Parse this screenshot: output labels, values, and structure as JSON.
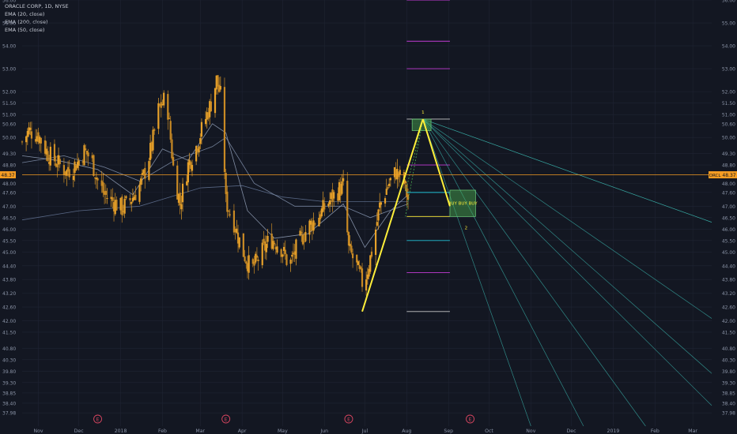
{
  "legend": {
    "title": "ORACLE CORP, 1D, NYSE",
    "indicators": [
      "EMA (20, close)",
      "EMA (200, close)",
      "EMA (50, close)"
    ]
  },
  "colors": {
    "background": "#131722",
    "grid": "#1f2433",
    "bull": "#e7a12a",
    "bear": "#c98a24",
    "ema20": "#8e9bb3",
    "ema50": "#7f8ea8",
    "ema200": "#5f6f8e",
    "price_line": "#f59d23",
    "trend": "#ffef3a",
    "fib_magenta": "#c23bd4",
    "fib_cyan": "#22c1d6",
    "fib_white": "#c8c8c8",
    "fan": "#3bb8b0",
    "zone": "#4caf50",
    "earnings": "#d84560",
    "axis_text": "#8a93a6"
  },
  "last_price": {
    "value": "48.37",
    "symbol": "ORCL"
  },
  "annotations": {
    "buy_text": "BUY BUY BUY",
    "point1": "1",
    "point2": "2"
  },
  "earnings_marker": "E",
  "chart_data": {
    "type": "candlestick",
    "y_axis": {
      "min": 37.4,
      "max": 56.0,
      "tick_labels": [
        "37.98",
        "38.40",
        "38.85",
        "39.30",
        "39.80",
        "40.30",
        "40.80",
        "41.50",
        "42.00",
        "42.60",
        "43.20",
        "43.80",
        "44.40",
        "45.00",
        "45.50",
        "46.00",
        "46.50",
        "47.00",
        "47.60",
        "48.00",
        "48.80",
        "49.30",
        "50.00",
        "50.60",
        "51.00",
        "51.50",
        "52.00",
        "53.00",
        "54.00",
        "55.00",
        "56.00"
      ],
      "tick_values": [
        37.98,
        38.4,
        38.85,
        39.3,
        39.8,
        40.3,
        40.8,
        41.5,
        42.0,
        42.6,
        43.2,
        43.8,
        44.4,
        45.0,
        45.5,
        46.0,
        46.5,
        47.0,
        47.6,
        48.0,
        48.8,
        49.3,
        50.0,
        50.6,
        51.0,
        51.5,
        52.0,
        53.0,
        54.0,
        55.0,
        56.0
      ]
    },
    "x_axis": {
      "tick_labels": [
        "Nov",
        "Dec",
        "2018",
        "Feb",
        "Mar",
        "Apr",
        "May",
        "Jun",
        "Jul",
        "Aug",
        "Sep",
        "Oct",
        "Nov",
        "Dec",
        "2019",
        "Feb",
        "Mar"
      ],
      "tick_dates": [
        "2017-11-01",
        "2017-12-01",
        "2018-01-01",
        "2018-02-01",
        "2018-03-01",
        "2018-04-01",
        "2018-05-01",
        "2018-06-01",
        "2018-07-01",
        "2018-08-01",
        "2018-09-01",
        "2018-10-01",
        "2018-11-01",
        "2018-12-01",
        "2019-01-01",
        "2019-02-01",
        "2019-03-01"
      ],
      "start": "2017-10-20",
      "end": "2019-03-15"
    },
    "price_path": [
      [
        "2017-10-20",
        49.8
      ],
      [
        "2017-10-25",
        50.3
      ],
      [
        "2017-11-01",
        50.1
      ],
      [
        "2017-11-08",
        49.3
      ],
      [
        "2017-11-15",
        48.9
      ],
      [
        "2017-11-22",
        48.5
      ],
      [
        "2017-11-30",
        48.9
      ],
      [
        "2017-12-05",
        49.4
      ],
      [
        "2017-12-10",
        49.1
      ],
      [
        "2017-12-15",
        48.1
      ],
      [
        "2017-12-20",
        47.5
      ],
      [
        "2018-01-02",
        46.9
      ],
      [
        "2018-01-10",
        47.4
      ],
      [
        "2018-01-17",
        48.1
      ],
      [
        "2018-01-24",
        49.6
      ],
      [
        "2018-01-29",
        51.2
      ],
      [
        "2018-02-04",
        51.8
      ],
      [
        "2018-02-09",
        48.7
      ],
      [
        "2018-02-14",
        47.1
      ],
      [
        "2018-02-20",
        48.8
      ],
      [
        "2018-02-26",
        49.6
      ],
      [
        "2018-03-03",
        50.5
      ],
      [
        "2018-03-09",
        51.5
      ],
      [
        "2018-03-13",
        52.5
      ],
      [
        "2018-03-17",
        51.6
      ],
      [
        "2018-03-20",
        47.2
      ],
      [
        "2018-03-26",
        46.3
      ],
      [
        "2018-04-01",
        45.1
      ],
      [
        "2018-04-08",
        44.2
      ],
      [
        "2018-04-15",
        44.9
      ],
      [
        "2018-04-22",
        45.6
      ],
      [
        "2018-04-29",
        45.3
      ],
      [
        "2018-05-06",
        44.4
      ],
      [
        "2018-05-13",
        45.4
      ],
      [
        "2018-05-20",
        46.1
      ],
      [
        "2018-05-27",
        46.5
      ],
      [
        "2018-06-03",
        47.1
      ],
      [
        "2018-06-10",
        47.6
      ],
      [
        "2018-06-15",
        47.9
      ],
      [
        "2018-06-19",
        45.1
      ],
      [
        "2018-06-24",
        44.5
      ],
      [
        "2018-06-30",
        43.5
      ],
      [
        "2018-07-06",
        45.0
      ],
      [
        "2018-07-12",
        47.0
      ],
      [
        "2018-07-18",
        47.9
      ],
      [
        "2018-07-24",
        48.5
      ],
      [
        "2018-07-30",
        48.0
      ],
      [
        "2018-08-02",
        47.3
      ]
    ],
    "ema_20": [
      [
        "2017-10-20",
        49.2
      ],
      [
        "2017-11-15",
        49.0
      ],
      [
        "2017-12-15",
        48.6
      ],
      [
        "2018-01-10",
        47.5
      ],
      [
        "2018-02-01",
        49.5
      ],
      [
        "2018-02-20",
        49.0
      ],
      [
        "2018-03-10",
        50.6
      ],
      [
        "2018-03-20",
        50.2
      ],
      [
        "2018-04-05",
        46.8
      ],
      [
        "2018-04-25",
        45.6
      ],
      [
        "2018-05-20",
        45.8
      ],
      [
        "2018-06-15",
        47.1
      ],
      [
        "2018-07-01",
        45.2
      ],
      [
        "2018-07-20",
        46.8
      ],
      [
        "2018-08-02",
        47.5
      ]
    ],
    "ema_50": [
      [
        "2017-10-20",
        48.9
      ],
      [
        "2017-11-20",
        49.2
      ],
      [
        "2017-12-20",
        48.7
      ],
      [
        "2018-01-15",
        48.1
      ],
      [
        "2018-02-10",
        49.0
      ],
      [
        "2018-03-10",
        49.6
      ],
      [
        "2018-03-20",
        50.0
      ],
      [
        "2018-04-10",
        48.0
      ],
      [
        "2018-05-10",
        47.0
      ],
      [
        "2018-06-15",
        47.0
      ],
      [
        "2018-07-05",
        46.5
      ],
      [
        "2018-08-02",
        47.1
      ]
    ],
    "ema_200": [
      [
        "2017-10-20",
        46.4
      ],
      [
        "2017-12-01",
        46.8
      ],
      [
        "2018-01-15",
        47.0
      ],
      [
        "2018-03-01",
        47.8
      ],
      [
        "2018-04-01",
        47.9
      ],
      [
        "2018-05-01",
        47.4
      ],
      [
        "2018-06-01",
        47.2
      ],
      [
        "2018-07-01",
        47.2
      ],
      [
        "2018-08-02",
        47.2
      ]
    ],
    "last_price_level": 48.37,
    "trend_lines": [
      {
        "from": [
          "2018-06-29",
          42.4
        ],
        "to": [
          "2018-08-13",
          50.8
        ]
      },
      {
        "from": [
          "2018-08-13",
          50.8
        ],
        "to": [
          "2018-09-02",
          47.0
        ]
      }
    ],
    "fib_levels": [
      {
        "price": 56.0,
        "color": "magenta",
        "from": "2018-08-01",
        "to": "2018-09-02"
      },
      {
        "price": 54.2,
        "color": "magenta",
        "from": "2018-08-01",
        "to": "2018-09-02"
      },
      {
        "price": 53.0,
        "color": "magenta",
        "from": "2018-08-01",
        "to": "2018-09-02"
      },
      {
        "price": 50.8,
        "color": "white",
        "from": "2018-08-01",
        "to": "2018-09-02"
      },
      {
        "price": 48.8,
        "color": "magenta",
        "from": "2018-08-01",
        "to": "2018-09-02"
      },
      {
        "price": 47.6,
        "color": "cyan",
        "from": "2018-08-01",
        "to": "2018-09-02"
      },
      {
        "price": 46.55,
        "color": "yellow",
        "from": "2018-08-01",
        "to": "2018-09-02"
      },
      {
        "price": 45.5,
        "color": "cyan",
        "from": "2018-08-01",
        "to": "2018-09-02"
      },
      {
        "price": 44.1,
        "color": "magenta",
        "from": "2018-08-01",
        "to": "2018-09-02"
      },
      {
        "price": 42.4,
        "color": "white",
        "from": "2018-08-01",
        "to": "2018-09-02"
      }
    ],
    "zones": [
      {
        "from": [
          "2018-08-05",
          50.8
        ],
        "to": [
          "2018-08-19",
          50.3
        ]
      },
      {
        "from": [
          "2018-09-02",
          47.7
        ],
        "to": [
          "2018-09-21",
          46.55
        ]
      }
    ],
    "fan_origin": [
      "2018-08-13",
      50.8
    ],
    "fan_ends": [
      [
        "2019-03-15",
        46.3
      ],
      [
        "2019-03-15",
        42.1
      ],
      [
        "2019-03-15",
        39.7
      ],
      [
        "2019-03-15",
        38.3
      ],
      [
        "2019-01-25",
        37.4
      ],
      [
        "2018-12-10",
        37.4
      ],
      [
        "2018-11-01",
        37.4
      ]
    ],
    "earnings_dates": [
      "2017-12-15",
      "2018-03-20",
      "2018-06-19",
      "2018-09-17"
    ]
  }
}
